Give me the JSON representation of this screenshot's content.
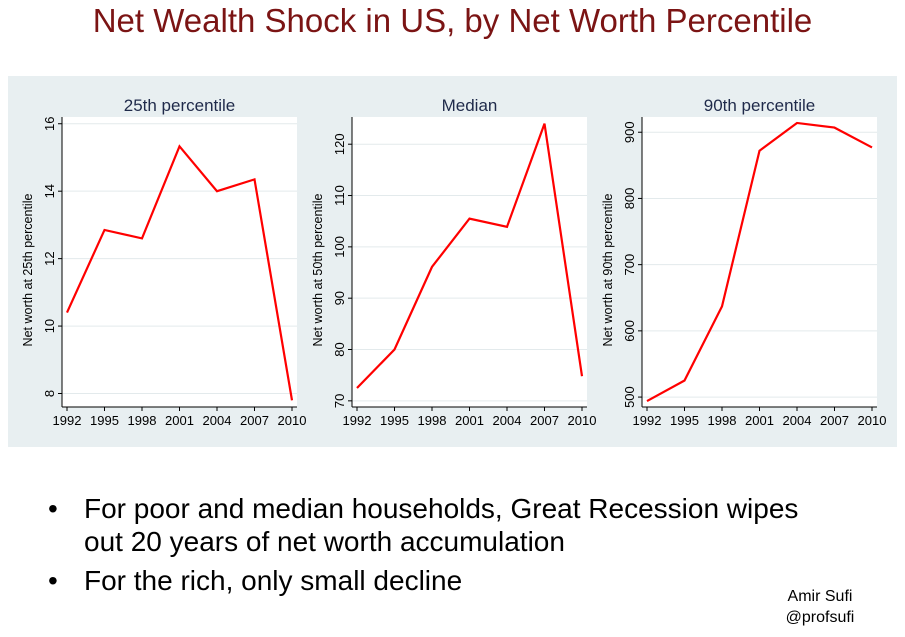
{
  "slide": {
    "title": "Net Wealth Shock in US, by Net Worth Percentile",
    "bullets": [
      "For poor and median households, Great Recession wipes out 20 years of net worth accumulation",
      "For the rich, only small decline"
    ],
    "author": "Amir Sufi",
    "handle": "@profsufi"
  },
  "colors": {
    "title": "#7B1414",
    "line": "#FF0000",
    "panel": "#E8EFF1",
    "subtitle": "#1F2A4A"
  },
  "chart_data": [
    {
      "type": "line",
      "title": "25th percentile",
      "xlabel": "",
      "ylabel": "Net worth at 25th percentile",
      "x": [
        1992,
        1995,
        1998,
        2001,
        2004,
        2007,
        2010
      ],
      "y": [
        10.4,
        12.85,
        12.6,
        15.33,
        14.0,
        14.35,
        7.8
      ],
      "yticks": [
        8,
        10,
        12,
        14,
        16
      ],
      "xticks": [
        1992,
        1995,
        1998,
        2001,
        2004,
        2007,
        2010
      ],
      "ylim": [
        7.6,
        16.2
      ],
      "grid": true
    },
    {
      "type": "line",
      "title": "Median",
      "xlabel": "",
      "ylabel": "Net worth at 50th percentile",
      "x": [
        1992,
        1995,
        1998,
        2001,
        2004,
        2007,
        2010
      ],
      "y": [
        72.5,
        80,
        96.1,
        105.5,
        103.9,
        124,
        74.8
      ],
      "yticks": [
        70,
        80,
        90,
        100,
        110,
        120
      ],
      "xticks": [
        1992,
        1995,
        1998,
        2001,
        2004,
        2007,
        2010
      ],
      "ylim": [
        68.8,
        125.3
      ],
      "grid": true
    },
    {
      "type": "line",
      "title": "90th percentile",
      "xlabel": "",
      "ylabel": "Net worth at 90th percentile",
      "x": [
        1992,
        1995,
        1998,
        2001,
        2004,
        2007,
        2010
      ],
      "y": [
        494,
        525,
        637,
        872,
        914,
        907,
        877
      ],
      "yticks": [
        500,
        600,
        700,
        800,
        900
      ],
      "xticks": [
        1992,
        1995,
        1998,
        2001,
        2004,
        2007,
        2010
      ],
      "ylim": [
        485,
        923
      ],
      "grid": true
    }
  ]
}
